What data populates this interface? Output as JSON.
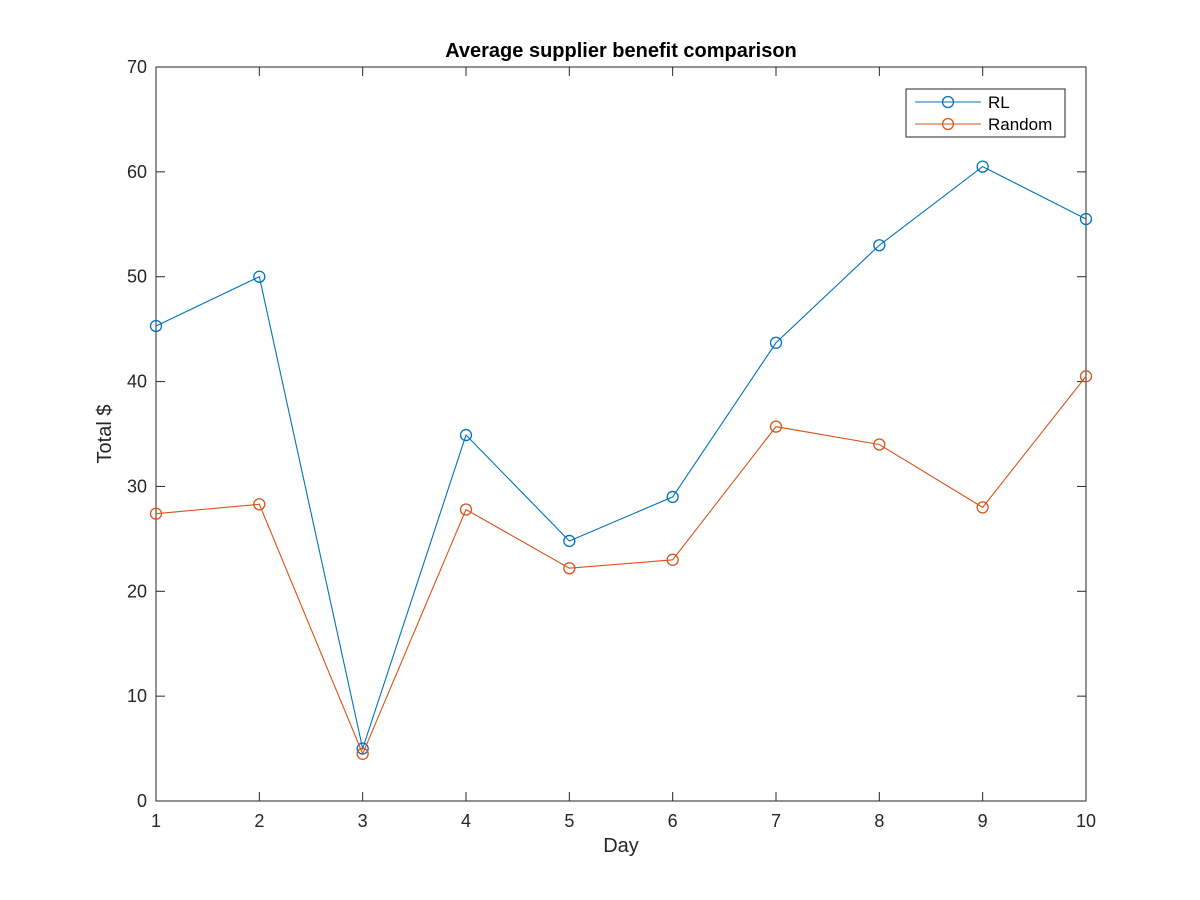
{
  "chart_data": {
    "type": "line",
    "title": "Average supplier benefit comparison",
    "xlabel": "Day",
    "ylabel": "Total $",
    "xlim": [
      1,
      10
    ],
    "ylim": [
      0,
      70
    ],
    "xticks": [
      1,
      2,
      3,
      4,
      5,
      6,
      7,
      8,
      9,
      10
    ],
    "yticks": [
      0,
      10,
      20,
      30,
      40,
      50,
      60,
      70
    ],
    "grid": false,
    "box": true,
    "legend_position": "top-right",
    "marker": "circle",
    "x": [
      1,
      2,
      3,
      4,
      5,
      6,
      7,
      8,
      9,
      10
    ],
    "series": [
      {
        "name": "RL",
        "color": "#0072BD",
        "values": [
          45.3,
          50.0,
          5.0,
          34.9,
          24.8,
          29.0,
          43.7,
          53.0,
          60.5,
          55.5
        ]
      },
      {
        "name": "Random",
        "color": "#D95319",
        "values": [
          27.4,
          28.3,
          4.5,
          27.8,
          22.2,
          23.0,
          35.7,
          34.0,
          28.0,
          40.5
        ]
      }
    ]
  }
}
